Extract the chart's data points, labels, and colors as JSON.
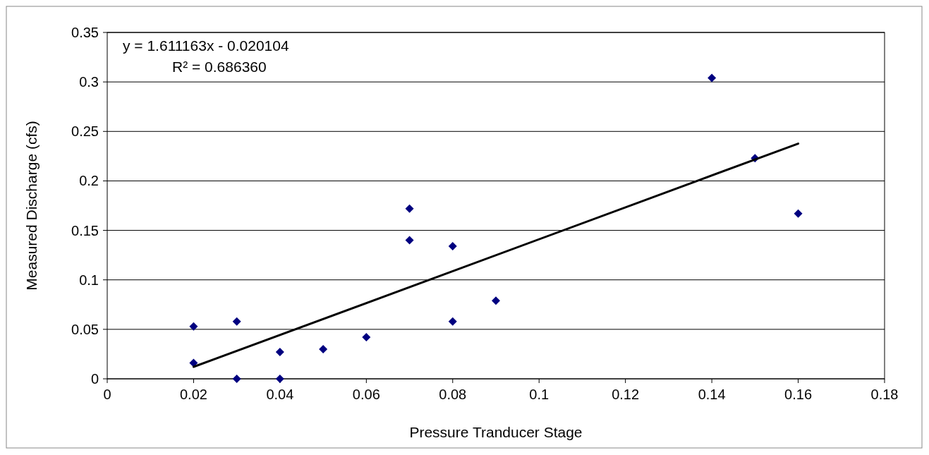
{
  "chart_data": {
    "type": "scatter",
    "xlabel": "Pressure Tranducer Stage",
    "ylabel": "Measured Discharge (cfs)",
    "xlim": [
      0,
      0.18
    ],
    "xticks": [
      0,
      0.02,
      0.04,
      0.06,
      0.08,
      0.1,
      0.12,
      0.14,
      0.16,
      0.18
    ],
    "ylim": [
      0,
      0.35
    ],
    "yticks": [
      0,
      0.05,
      0.1,
      0.15,
      0.2,
      0.25,
      0.3,
      0.35
    ],
    "grid": "y",
    "annotations": [
      "y = 1.611163x - 0.020104",
      "R² = 0.686360"
    ],
    "series": [
      {
        "color": "#000080",
        "marker": "diamond",
        "x": [
          0.02,
          0.02,
          0.03,
          0.03,
          0.04,
          0.04,
          0.05,
          0.06,
          0.07,
          0.07,
          0.08,
          0.08,
          0.09,
          0.14,
          0.15,
          0.16
        ],
        "values": [
          0.053,
          0.016,
          0.058,
          0,
          0.027,
          0,
          0.03,
          0.042,
          0.172,
          0.14,
          0.134,
          0.058,
          0.079,
          0.304,
          0.223,
          0.167
        ]
      },
      {
        "type": "line",
        "color": "#000000",
        "marker": "none",
        "line_style": "solid",
        "x": [
          0.02,
          0.16
        ],
        "values": [
          0.0121,
          0.2377
        ]
      }
    ]
  }
}
